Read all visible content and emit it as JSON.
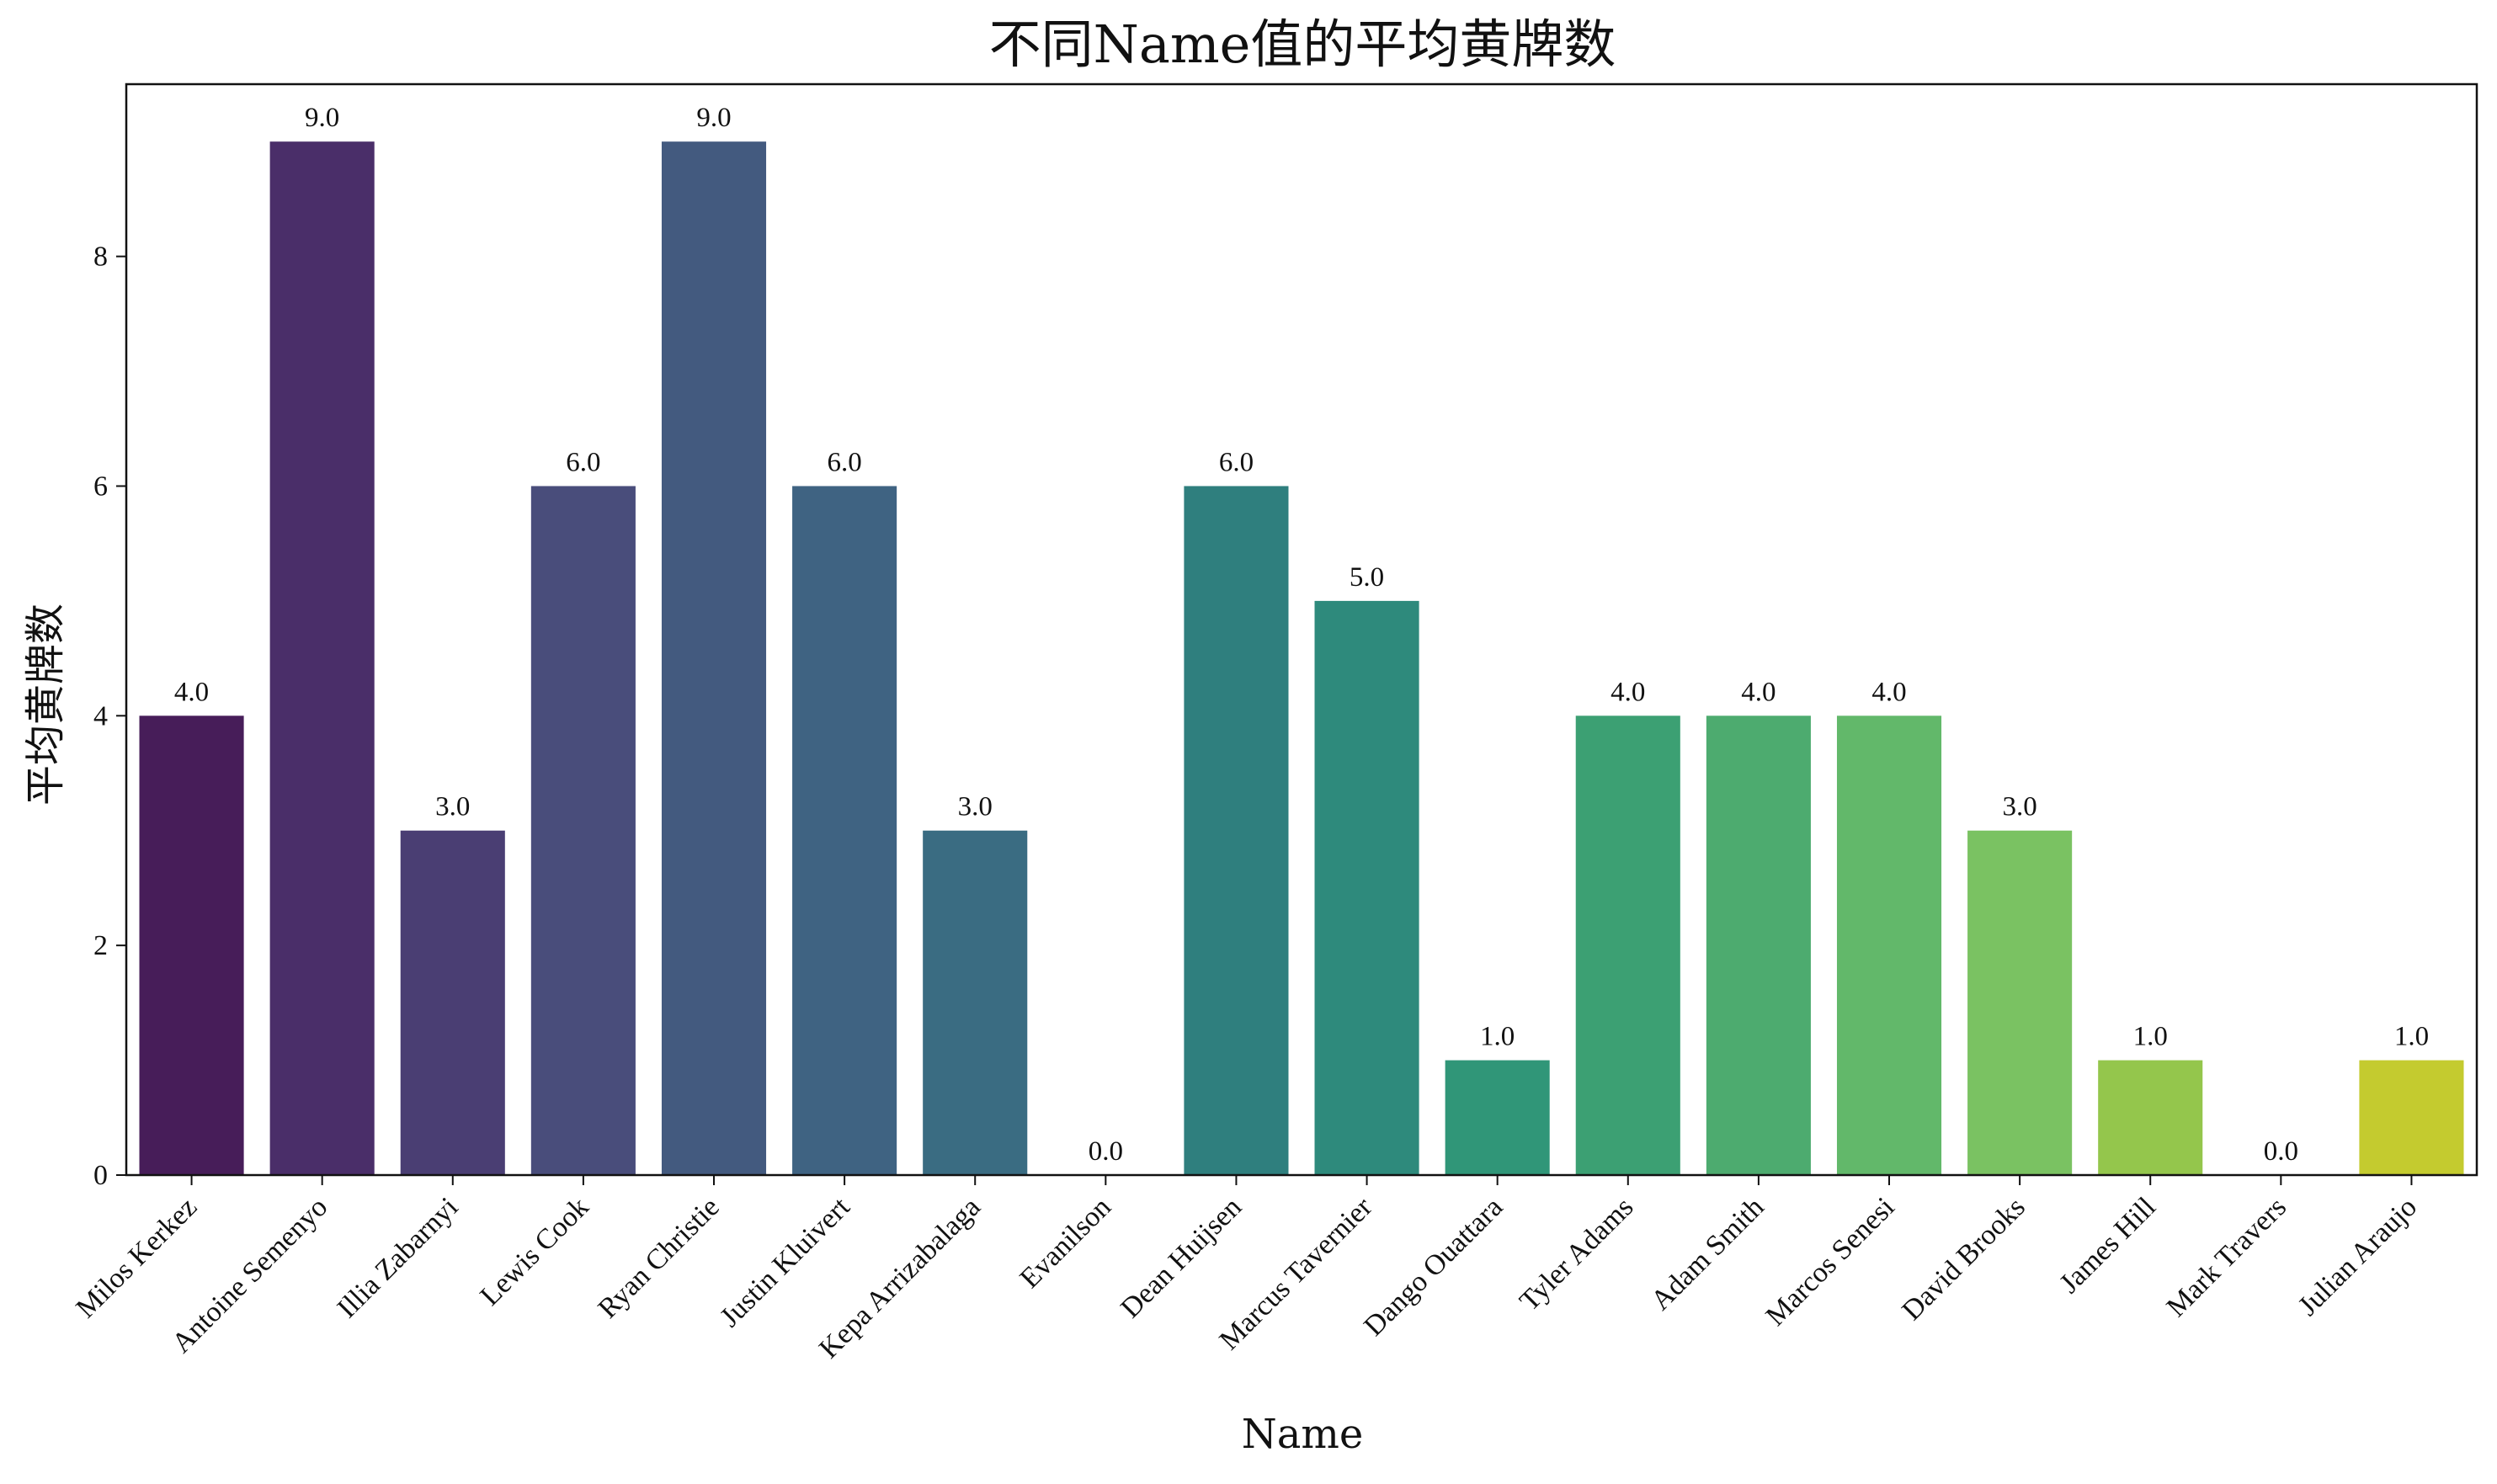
{
  "chart_data": {
    "type": "bar",
    "title": "不同Name值的平均黄牌数",
    "xlabel": "Name",
    "ylabel": "平均黄牌数",
    "ylim": [
      0,
      9.5
    ],
    "yticks": [
      0,
      2,
      4,
      6,
      8
    ],
    "grid": false,
    "legend": "none",
    "categories": [
      "Milos Kerkez",
      "Antoine Semenyo",
      "Illia Zabarnyi",
      "Lewis Cook",
      "Ryan Christie",
      "Justin Kluivert",
      "Kepa Arrizabalaga",
      "Evanilson",
      "Dean Huijsen",
      "Marcus Tavernier",
      "Dango Ouattara",
      "Tyler Adams",
      "Adam Smith",
      "Marcos Senesi",
      "David Brooks",
      "James Hill",
      "Mark Travers",
      "Julian Araujo"
    ],
    "values": [
      4.0,
      9.0,
      3.0,
      6.0,
      9.0,
      6.0,
      3.0,
      0.0,
      6.0,
      5.0,
      1.0,
      4.0,
      4.0,
      4.0,
      3.0,
      1.0,
      0.0,
      1.0
    ],
    "value_labels": [
      "4.0",
      "9.0",
      "3.0",
      "6.0",
      "9.0",
      "6.0",
      "3.0",
      "0.0",
      "6.0",
      "5.0",
      "1.0",
      "4.0",
      "4.0",
      "4.0",
      "3.0",
      "1.0",
      "0.0",
      "1.0"
    ],
    "colors": [
      "#471d59",
      "#4a2e69",
      "#4a3e73",
      "#494d7b",
      "#435a7f",
      "#3f6382",
      "#3a6c82",
      "#367582",
      "#2f7f7e",
      "#2e8a7c",
      "#309678",
      "#3ca073",
      "#4dab6f",
      "#62b86a",
      "#7ac262",
      "#94c64c",
      "#aec83e",
      "#c4cb2f"
    ]
  }
}
